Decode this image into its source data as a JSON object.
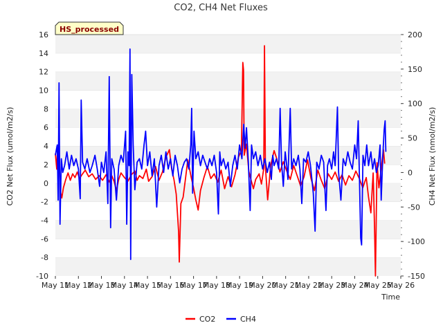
{
  "chart_data": {
    "type": "line",
    "title": "CO2, CH4 Net Fluxes",
    "badge": "HS_processed",
    "xlabel": "Time",
    "ylabel_left": "CO2 Net Flux (umol/m2/s)",
    "ylabel_right": "CH4 Net Flux (nmol/m2/s)",
    "ylim_left": [
      -10,
      16
    ],
    "ylim_right": [
      -150,
      200
    ],
    "xlim": [
      11,
      26
    ],
    "grid": "horizontal bands",
    "legend_position": "bottom-center",
    "x_ticks": [
      {
        "value": 11,
        "label": "May 11"
      },
      {
        "value": 12,
        "label": "May 12"
      },
      {
        "value": 13,
        "label": "May 13"
      },
      {
        "value": 14,
        "label": "May 14"
      },
      {
        "value": 15,
        "label": "May 15"
      },
      {
        "value": 16,
        "label": "May 16"
      },
      {
        "value": 17,
        "label": "May 17"
      },
      {
        "value": 18,
        "label": "May 18"
      },
      {
        "value": 19,
        "label": "May 19"
      },
      {
        "value": 20,
        "label": "May 20"
      },
      {
        "value": 21,
        "label": "May 21"
      },
      {
        "value": 22,
        "label": "May 22"
      },
      {
        "value": 23,
        "label": "May 23"
      },
      {
        "value": 24,
        "label": "May 24"
      },
      {
        "value": 25,
        "label": "May 25"
      },
      {
        "value": 26,
        "label": "May 26"
      }
    ],
    "y_ticks_left": [
      -10,
      -8,
      -6,
      -4,
      -2,
      0,
      2,
      4,
      6,
      8,
      10,
      12,
      14,
      16
    ],
    "y_ticks_right": [
      -150,
      -100,
      -50,
      0,
      50,
      100,
      150,
      200
    ],
    "series": [
      {
        "name": "CO2",
        "axis": "left",
        "color": "#ff0000",
        "points": [
          [
            11.0,
            3.2
          ],
          [
            11.06,
            1.5
          ],
          [
            11.1,
            3.8
          ],
          [
            11.13,
            2.4
          ],
          [
            11.18,
            1.0
          ],
          [
            11.22,
            -0.9
          ],
          [
            11.28,
            -1.6
          ],
          [
            11.35,
            -0.5
          ],
          [
            11.45,
            0.4
          ],
          [
            11.55,
            1.1
          ],
          [
            11.65,
            0.3
          ],
          [
            11.75,
            1.0
          ],
          [
            11.85,
            0.6
          ],
          [
            11.95,
            1.2
          ],
          [
            12.05,
            0.5
          ],
          [
            12.15,
            0.9
          ],
          [
            12.3,
            1.4
          ],
          [
            12.45,
            0.7
          ],
          [
            12.6,
            1.0
          ],
          [
            12.75,
            0.4
          ],
          [
            12.9,
            0.8
          ],
          [
            13.05,
            0.3
          ],
          [
            13.2,
            0.9
          ],
          [
            13.35,
            0.1
          ],
          [
            13.45,
            0.8
          ],
          [
            13.55,
            0.2
          ],
          [
            13.65,
            -0.8
          ],
          [
            13.75,
            0.4
          ],
          [
            13.85,
            1.1
          ],
          [
            14.0,
            0.6
          ],
          [
            14.15,
            0.2
          ],
          [
            14.3,
            0.9
          ],
          [
            14.45,
            1.3
          ],
          [
            14.55,
            0.3
          ],
          [
            14.65,
            0.8
          ],
          [
            14.8,
            0.5
          ],
          [
            14.95,
            1.5
          ],
          [
            15.05,
            0.2
          ],
          [
            15.2,
            0.7
          ],
          [
            15.35,
            1.8
          ],
          [
            15.5,
            0.3
          ],
          [
            15.65,
            1.2
          ],
          [
            15.8,
            2.8
          ],
          [
            15.95,
            3.6
          ],
          [
            16.05,
            1.5
          ],
          [
            16.15,
            0.4
          ],
          [
            16.25,
            -1.2
          ],
          [
            16.35,
            -5.2
          ],
          [
            16.38,
            -8.5
          ],
          [
            16.45,
            -2.2
          ],
          [
            16.55,
            -1.5
          ],
          [
            16.65,
            0.5
          ],
          [
            16.75,
            2.5
          ],
          [
            16.9,
            0.6
          ],
          [
            17.0,
            -0.5
          ],
          [
            17.1,
            -1.8
          ],
          [
            17.2,
            -2.9
          ],
          [
            17.3,
            -0.8
          ],
          [
            17.45,
            0.6
          ],
          [
            17.6,
            1.8
          ],
          [
            17.75,
            0.5
          ],
          [
            17.9,
            1.0
          ],
          [
            18.05,
            0.1
          ],
          [
            18.2,
            1.4
          ],
          [
            18.35,
            -0.6
          ],
          [
            18.5,
            0.7
          ],
          [
            18.65,
            -0.4
          ],
          [
            18.8,
            0.9
          ],
          [
            18.95,
            2.8
          ],
          [
            19.08,
            3.5
          ],
          [
            19.14,
            13.0
          ],
          [
            19.17,
            12.2
          ],
          [
            19.2,
            3.0
          ],
          [
            19.3,
            4.2
          ],
          [
            19.4,
            1.3
          ],
          [
            19.5,
            0.3
          ],
          [
            19.6,
            -0.6
          ],
          [
            19.7,
            0.4
          ],
          [
            19.85,
            1.0
          ],
          [
            19.95,
            -0.1
          ],
          [
            20.05,
            1.6
          ],
          [
            20.08,
            14.8
          ],
          [
            20.12,
            1.8
          ],
          [
            20.22,
            -1.8
          ],
          [
            20.35,
            1.9
          ],
          [
            20.5,
            3.5
          ],
          [
            20.62,
            2.6
          ],
          [
            20.75,
            1.2
          ],
          [
            20.9,
            2.3
          ],
          [
            21.05,
            1.3
          ],
          [
            21.2,
            0.4
          ],
          [
            21.35,
            1.9
          ],
          [
            21.5,
            0.8
          ],
          [
            21.65,
            -0.3
          ],
          [
            21.8,
            0.7
          ],
          [
            21.95,
            2.5
          ],
          [
            22.1,
            0.5
          ],
          [
            22.25,
            -0.8
          ],
          [
            22.4,
            1.4
          ],
          [
            22.55,
            0.3
          ],
          [
            22.7,
            -0.6
          ],
          [
            22.85,
            1.0
          ],
          [
            23.0,
            0.4
          ],
          [
            23.15,
            1.2
          ],
          [
            23.3,
            0.2
          ],
          [
            23.45,
            0.9
          ],
          [
            23.6,
            -0.2
          ],
          [
            23.75,
            0.8
          ],
          [
            23.9,
            0.3
          ],
          [
            24.05,
            1.3
          ],
          [
            24.2,
            0.5
          ],
          [
            24.35,
            -0.5
          ],
          [
            24.5,
            0.6
          ],
          [
            24.6,
            -1.5
          ],
          [
            24.7,
            -3.2
          ],
          [
            24.8,
            1.1
          ],
          [
            24.86,
            -4.8
          ],
          [
            24.9,
            -10.0
          ],
          [
            24.97,
            2.2
          ],
          [
            25.05,
            -0.5
          ],
          [
            25.15,
            1.6
          ],
          [
            25.25,
            3.6
          ],
          [
            25.3,
            2.1
          ]
        ]
      },
      {
        "name": "CH4",
        "axis": "right",
        "color": "#0000ff",
        "points": [
          [
            11.0,
            25
          ],
          [
            11.08,
            40
          ],
          [
            11.12,
            -40
          ],
          [
            11.16,
            130
          ],
          [
            11.2,
            -75
          ],
          [
            11.26,
            20
          ],
          [
            11.32,
            0
          ],
          [
            11.4,
            10
          ],
          [
            11.5,
            30
          ],
          [
            11.6,
            5
          ],
          [
            11.7,
            25
          ],
          [
            11.8,
            10
          ],
          [
            11.9,
            20
          ],
          [
            12.0,
            5
          ],
          [
            12.08,
            -38
          ],
          [
            12.12,
            105
          ],
          [
            12.18,
            15
          ],
          [
            12.28,
            5
          ],
          [
            12.38,
            20
          ],
          [
            12.5,
            0
          ],
          [
            12.6,
            10
          ],
          [
            12.72,
            25
          ],
          [
            12.82,
            5
          ],
          [
            12.92,
            -20
          ],
          [
            13.0,
            15
          ],
          [
            13.1,
            0
          ],
          [
            13.2,
            30
          ],
          [
            13.28,
            -45
          ],
          [
            13.34,
            139
          ],
          [
            13.4,
            -80
          ],
          [
            13.45,
            20
          ],
          [
            13.55,
            5
          ],
          [
            13.65,
            -40
          ],
          [
            13.75,
            10
          ],
          [
            13.85,
            25
          ],
          [
            13.95,
            15
          ],
          [
            14.05,
            60
          ],
          [
            14.1,
            -75
          ],
          [
            14.15,
            30
          ],
          [
            14.2,
            10
          ],
          [
            14.24,
            179
          ],
          [
            14.27,
            -126
          ],
          [
            14.32,
            142
          ],
          [
            14.38,
            40
          ],
          [
            14.45,
            -25
          ],
          [
            14.55,
            15
          ],
          [
            14.65,
            20
          ],
          [
            14.75,
            5
          ],
          [
            14.85,
            40
          ],
          [
            14.92,
            60
          ],
          [
            15.0,
            10
          ],
          [
            15.1,
            30
          ],
          [
            15.2,
            -5
          ],
          [
            15.3,
            20
          ],
          [
            15.4,
            -50
          ],
          [
            15.5,
            10
          ],
          [
            15.6,
            25
          ],
          [
            15.7,
            0
          ],
          [
            15.8,
            30
          ],
          [
            15.9,
            5
          ],
          [
            16.0,
            20
          ],
          [
            16.1,
            -5
          ],
          [
            16.2,
            25
          ],
          [
            16.3,
            10
          ],
          [
            16.4,
            -15
          ],
          [
            16.5,
            5
          ],
          [
            16.6,
            15
          ],
          [
            16.7,
            20
          ],
          [
            16.8,
            5
          ],
          [
            16.88,
            40
          ],
          [
            16.92,
            93
          ],
          [
            16.96,
            -30
          ],
          [
            17.02,
            60
          ],
          [
            17.1,
            20
          ],
          [
            17.2,
            30
          ],
          [
            17.3,
            10
          ],
          [
            17.4,
            25
          ],
          [
            17.5,
            15
          ],
          [
            17.6,
            5
          ],
          [
            17.7,
            20
          ],
          [
            17.8,
            10
          ],
          [
            17.9,
            25
          ],
          [
            18.0,
            0
          ],
          [
            18.08,
            -60
          ],
          [
            18.14,
            30
          ],
          [
            18.2,
            10
          ],
          [
            18.3,
            20
          ],
          [
            18.4,
            5
          ],
          [
            18.5,
            15
          ],
          [
            18.6,
            -20
          ],
          [
            18.7,
            10
          ],
          [
            18.8,
            25
          ],
          [
            18.9,
            5
          ],
          [
            19.0,
            40
          ],
          [
            19.1,
            20
          ],
          [
            19.18,
            70
          ],
          [
            19.24,
            35
          ],
          [
            19.3,
            65
          ],
          [
            19.38,
            15
          ],
          [
            19.46,
            -55
          ],
          [
            19.52,
            40
          ],
          [
            19.6,
            20
          ],
          [
            19.7,
            30
          ],
          [
            19.8,
            10
          ],
          [
            19.9,
            25
          ],
          [
            20.0,
            5
          ],
          [
            20.1,
            20
          ],
          [
            20.2,
            0
          ],
          [
            20.3,
            15
          ],
          [
            20.38,
            -10
          ],
          [
            20.44,
            25
          ],
          [
            20.5,
            10
          ],
          [
            20.6,
            20
          ],
          [
            20.7,
            5
          ],
          [
            20.76,
            93
          ],
          [
            20.82,
            15
          ],
          [
            20.9,
            -20
          ],
          [
            20.98,
            30
          ],
          [
            21.05,
            10
          ],
          [
            21.1,
            -10
          ],
          [
            21.2,
            93
          ],
          [
            21.26,
            5
          ],
          [
            21.35,
            20
          ],
          [
            21.45,
            10
          ],
          [
            21.55,
            25
          ],
          [
            21.62,
            5
          ],
          [
            21.7,
            -45
          ],
          [
            21.78,
            20
          ],
          [
            21.88,
            15
          ],
          [
            21.98,
            30
          ],
          [
            22.08,
            10
          ],
          [
            22.2,
            -30
          ],
          [
            22.28,
            -85
          ],
          [
            22.35,
            15
          ],
          [
            22.45,
            5
          ],
          [
            22.55,
            25
          ],
          [
            22.65,
            15
          ],
          [
            22.75,
            -55
          ],
          [
            22.82,
            10
          ],
          [
            22.9,
            20
          ],
          [
            23.0,
            5
          ],
          [
            23.08,
            30
          ],
          [
            23.15,
            10
          ],
          [
            23.25,
            95
          ],
          [
            23.3,
            0
          ],
          [
            23.4,
            -40
          ],
          [
            23.5,
            20
          ],
          [
            23.6,
            10
          ],
          [
            23.7,
            30
          ],
          [
            23.8,
            15
          ],
          [
            23.9,
            5
          ],
          [
            24.0,
            40
          ],
          [
            24.08,
            20
          ],
          [
            24.15,
            75
          ],
          [
            24.2,
            0
          ],
          [
            24.26,
            -95
          ],
          [
            24.3,
            -105
          ],
          [
            24.36,
            25
          ],
          [
            24.44,
            10
          ],
          [
            24.52,
            40
          ],
          [
            24.6,
            10
          ],
          [
            24.7,
            30
          ],
          [
            24.78,
            5
          ],
          [
            24.86,
            20
          ],
          [
            24.94,
            0
          ],
          [
            25.02,
            10
          ],
          [
            25.1,
            40
          ],
          [
            25.15,
            -40
          ],
          [
            25.22,
            25
          ],
          [
            25.28,
            62
          ],
          [
            25.32,
            75
          ],
          [
            25.35,
            30
          ]
        ]
      }
    ]
  }
}
